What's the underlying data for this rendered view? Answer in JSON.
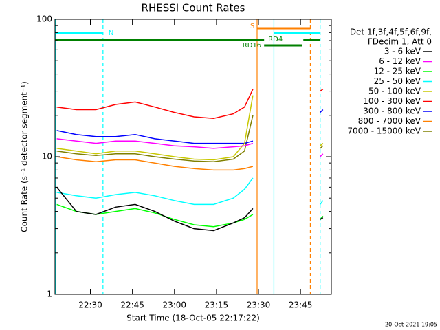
{
  "chart_data": {
    "type": "line",
    "title": "RHESSI Count Rates",
    "xlabel": "Start Time (18-Oct-05 22:17:22)",
    "ylabel": "Count Rate (s⁻¹ detector segment⁻¹)",
    "legend_header": [
      "Det 1f,3f,4f,5f,6f,9f,",
      "FDecim 1, Att 0"
    ],
    "footer": "20-Oct-2021 19:05",
    "log_y": true,
    "xlim": [
      "22:17:22",
      "23:56"
    ],
    "xticks": [
      "22:30",
      "22:45",
      "23:00",
      "23:15",
      "23:30",
      "23:45"
    ],
    "ylim": [
      1,
      100
    ],
    "yticks": [
      1,
      10,
      100
    ],
    "x": [
      "22:18",
      "22:25",
      "22:32",
      "22:39",
      "22:46",
      "22:53",
      "23:00",
      "23:07",
      "23:14",
      "23:21",
      "23:25",
      "23:28",
      "23:40",
      "23:52",
      "23:53"
    ],
    "series": [
      {
        "name": "3 - 6 keV",
        "color": "#000000",
        "values": [
          6,
          4,
          3.8,
          4.3,
          4.5,
          4,
          3.4,
          3,
          2.9,
          3.3,
          3.6,
          4.2,
          null,
          3.5,
          3.6
        ]
      },
      {
        "name": "6 - 12 keV",
        "color": "#ff00ff",
        "values": [
          13.5,
          13,
          12.5,
          13,
          13,
          12.5,
          12,
          11.8,
          11.5,
          11.8,
          12,
          12.5,
          null,
          10,
          10.5
        ]
      },
      {
        "name": "12 - 25 keV",
        "color": "#00ff00",
        "values": [
          4.5,
          4,
          3.8,
          4,
          4.2,
          3.9,
          3.5,
          3.2,
          3.1,
          3.3,
          3.5,
          3.8,
          null,
          3.5,
          3.7
        ]
      },
      {
        "name": "25 - 50 keV",
        "color": "#00ffff",
        "values": [
          5.5,
          5.2,
          5,
          5.3,
          5.5,
          5.2,
          4.8,
          4.5,
          4.5,
          5,
          5.8,
          7,
          null,
          4.5,
          4.8
        ]
      },
      {
        "name": "50 - 100 keV",
        "color": "#c8c800",
        "values": [
          11.5,
          11,
          10.5,
          11,
          11,
          10.5,
          10,
          9.6,
          9.5,
          10,
          12.5,
          28,
          null,
          12,
          12.5
        ]
      },
      {
        "name": "100 - 300 keV",
        "color": "#ff0000",
        "values": [
          23,
          22,
          22,
          24,
          25,
          23,
          21,
          19.5,
          19,
          20.5,
          23,
          31,
          null,
          30,
          31
        ]
      },
      {
        "name": "300 - 800 keV",
        "color": "#0000ff",
        "values": [
          15.5,
          14.5,
          14,
          14,
          14.5,
          13.5,
          13,
          12.5,
          12.5,
          12.5,
          12.5,
          13,
          null,
          21,
          22
        ]
      },
      {
        "name": "800 - 7000 keV",
        "color": "#ff8000",
        "values": [
          10,
          9.5,
          9.2,
          9.5,
          9.5,
          9,
          8.5,
          8.2,
          8,
          8,
          8.2,
          8.5,
          null,
          12,
          12.5
        ]
      },
      {
        "name": "7000 - 15000 keV",
        "color": "#808000",
        "values": [
          11,
          10.5,
          10.2,
          10.5,
          10.5,
          10,
          9.6,
          9.3,
          9.2,
          9.6,
          11,
          20,
          null,
          11.5,
          12
        ]
      }
    ],
    "vlines": [
      {
        "time": "22:17:30",
        "color": "#00ffff",
        "dashed": false
      },
      {
        "time": "22:34:30",
        "color": "#00ffff",
        "dashed": true
      },
      {
        "time": "23:29:30",
        "color": "#ff8000",
        "dashed": false
      },
      {
        "time": "23:35:30",
        "color": "#00ffff",
        "dashed": false
      },
      {
        "time": "23:48:30",
        "color": "#ff8000",
        "dashed": true
      },
      {
        "time": "23:52",
        "color": "#00ffff",
        "dashed": true
      }
    ],
    "bars": [
      {
        "label": "N",
        "color": "#00ffff",
        "start": "22:17:22",
        "end": "22:34:30"
      },
      {
        "label": "S",
        "color": "#ff8000",
        "start": "23:29:30",
        "end": "23:48:30"
      },
      {
        "color": "#00ffff",
        "start": "23:35:30",
        "end": "23:52"
      },
      {
        "color": "#008000",
        "start": "22:17:22",
        "end": "23:32"
      },
      {
        "label": "RD16",
        "color": "#008000",
        "start": "23:32",
        "end": "23:45:30"
      },
      {
        "label": "RD4",
        "color": "#008000",
        "start": "23:46",
        "end": "23:52"
      }
    ]
  }
}
